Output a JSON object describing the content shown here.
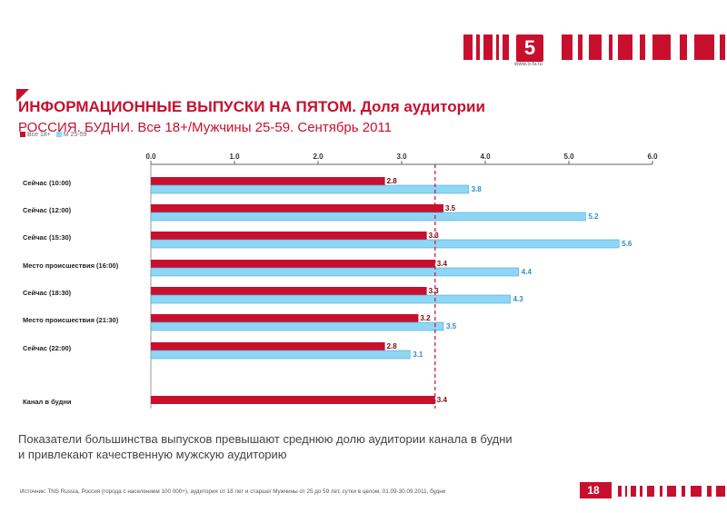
{
  "branding": {
    "logo_text": "5",
    "logo_caption": "www.5-tv.ru"
  },
  "header": {
    "title": "ИНФОРМАЦИОННЫЕ ВЫПУСКИ НА ПЯТОМ. Доля аудитории",
    "subtitle": "РОССИЯ. БУДНИ. Все 18+/Мужчины 25-59. Сентябрь 2011",
    "legend_fragment_a": "Все 18+",
    "legend_fragment_b": "М 25-59"
  },
  "colors": {
    "brand": "#c8102e",
    "series_all": "#c8102e",
    "series_men": "#8ed6f5",
    "men_label": "#2a8fbf",
    "avg_line": "#c8102e"
  },
  "chart_data": {
    "type": "bar",
    "orientation": "horizontal",
    "xlim": [
      0,
      6
    ],
    "ticks": [
      "0.0",
      "1.0",
      "2.0",
      "3.0",
      "4.0",
      "5.0",
      "6.0"
    ],
    "categories": [
      "Сейчас (10:00)",
      "Сейчас (12:00)",
      "Сейчас (15:30)",
      "Место происшествия (16:00)",
      "Сейчас (18:30)",
      "Место происшествия (21:30)",
      "Сейчас (22:00)",
      "Канал в будни"
    ],
    "series": [
      {
        "name": "Все 18+",
        "values": [
          2.8,
          3.5,
          3.3,
          3.4,
          3.3,
          3.2,
          2.8,
          3.4
        ],
        "labels": [
          "2.8",
          "3.5",
          "3.3",
          "3.4",
          "3.3",
          "3.2",
          "2.8",
          "3.4"
        ]
      },
      {
        "name": "М 25-59",
        "values": [
          3.8,
          5.2,
          5.6,
          4.4,
          4.3,
          3.5,
          3.1,
          null
        ],
        "labels": [
          "3.8",
          "5.2",
          "5.6",
          "4.4",
          "4.3",
          "3.5",
          "3.1",
          ""
        ]
      }
    ],
    "reference_line": 3.4
  },
  "note": {
    "line1": "Показатели большинства выпусков превышают среднюю долю аудитории канала в будни",
    "line2": "и привлекают качественную мужскую аудиторию"
  },
  "footer": {
    "source": "Источник: TNS Russia, Россия (города с населением 100 000+), аудитория от 18 лет и старше/ Мужчины от 25 до 59 лет, сутки в целом, 01.09-30.09.2011, будни",
    "page_number": "18"
  }
}
